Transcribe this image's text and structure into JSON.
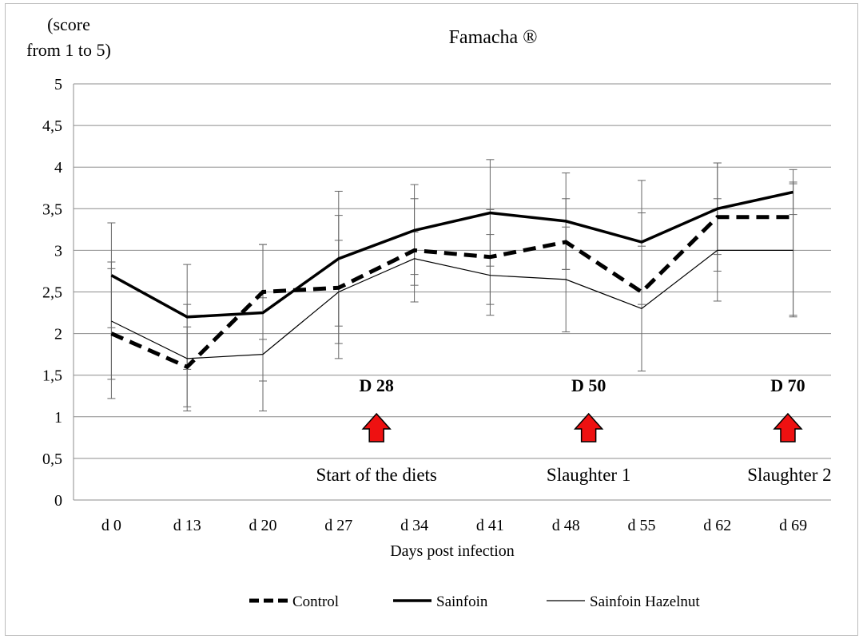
{
  "chart_data": {
    "type": "line",
    "title": "Famacha ®",
    "ylabel_line1": "(score",
    "ylabel_line2": "from 1 to 5)",
    "xlabel": "Days post infection",
    "categories": [
      "d 0",
      "d 13",
      "d 20",
      "d 27",
      "d 34",
      "d 41",
      "d 48",
      "d 55",
      "d 62",
      "d 69"
    ],
    "yticks": [
      "0",
      "0,5",
      "1",
      "1,5",
      "2",
      "2,5",
      "3",
      "3,5",
      "4",
      "4,5",
      "5"
    ],
    "ylim": [
      0,
      5
    ],
    "grid": true,
    "legend_position": "bottom",
    "series": [
      {
        "name": "Control",
        "style": "dashed",
        "values": [
          2.0,
          1.6,
          2.5,
          2.55,
          3.0,
          2.92,
          3.1,
          2.5,
          3.4,
          3.4
        ],
        "err_low": [
          1.22,
          1.12,
          1.93,
          1.88,
          2.38,
          2.35,
          2.77,
          1.55,
          2.75,
          2.22
        ],
        "err_high": [
          2.78,
          2.08,
          3.07,
          3.42,
          3.62,
          3.49,
          3.62,
          3.45,
          4.05,
          3.82
        ]
      },
      {
        "name": "Sainfoin",
        "style": "thick",
        "values": [
          2.7,
          2.2,
          2.25,
          2.9,
          3.24,
          3.45,
          3.35,
          3.1,
          3.5,
          3.7
        ],
        "err_low": [
          2.07,
          1.57,
          1.43,
          2.09,
          2.71,
          2.81,
          2.77,
          2.35,
          2.95,
          3.43
        ],
        "err_high": [
          3.33,
          2.83,
          3.07,
          3.71,
          3.79,
          4.09,
          3.93,
          3.84,
          4.05,
          3.97
        ]
      },
      {
        "name": "Sainfoin Hazelnut",
        "style": "thin",
        "values": [
          2.15,
          1.7,
          1.75,
          2.5,
          2.9,
          2.7,
          2.65,
          2.3,
          3.0,
          3.0
        ],
        "err_low": [
          1.45,
          1.07,
          1.07,
          1.7,
          2.58,
          2.22,
          2.02,
          1.55,
          2.39,
          2.2
        ],
        "err_high": [
          2.86,
          2.35,
          2.43,
          3.12,
          3.22,
          3.19,
          3.28,
          3.05,
          3.62,
          3.8
        ]
      }
    ],
    "annotations": [
      {
        "label": "D 28",
        "caption": "Start of the diets",
        "x_position": 3.5
      },
      {
        "label": "D 50",
        "caption": "Slaughter 1",
        "x_position": 6.3
      },
      {
        "label": "D 70",
        "caption": "Slaughter 2",
        "x_position": 8.93
      }
    ],
    "colors": {
      "line": "#000000",
      "grid": "#8c8c8c",
      "arrow_fill": "#ee1111",
      "arrow_stroke": "#000000",
      "error_bar": "#666666"
    }
  }
}
